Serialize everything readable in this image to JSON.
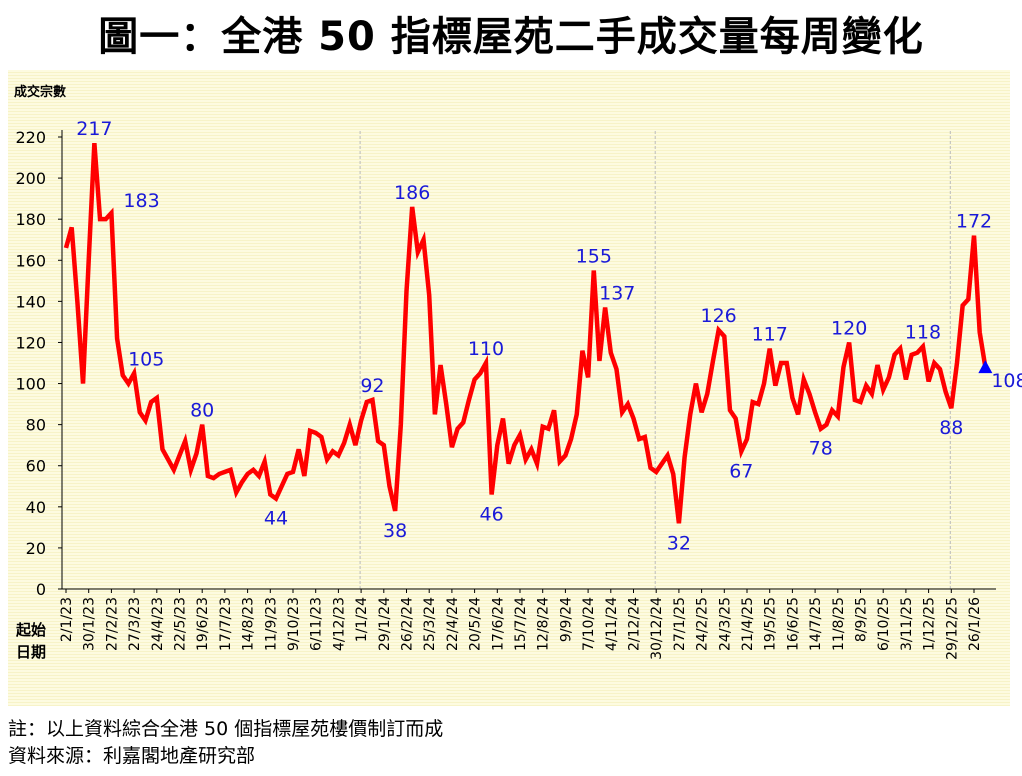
{
  "title": "圖一：全港 50 指標屋苑二手成交量每周變化",
  "footnotes": [
    "註：以上資料綜合全港 50 個指標屋苑樓價制訂而成",
    "資料來源：利嘉閣地產研究部"
  ],
  "colors": {
    "line": "#ff0000",
    "label": "#1a1ad8",
    "marker": "#0000ff"
  },
  "chart_data": {
    "type": "line",
    "title": "圖一：全港 50 指標屋苑二手成交量每周變化",
    "ylabel": "成交宗數",
    "xlabel": "起始日期",
    "xlabel_lines": [
      "起始",
      "日期"
    ],
    "ylim": [
      0,
      220
    ],
    "yticks": [
      0,
      20,
      40,
      60,
      80,
      100,
      120,
      140,
      160,
      180,
      200,
      220
    ],
    "xtick_labels": [
      "2/1/23",
      "30/1/23",
      "27/2/23",
      "27/3/23",
      "24/4/23",
      "22/5/23",
      "19/6/23",
      "17/7/23",
      "14/8/23",
      "11/9/23",
      "9/10/23",
      "6/11/23",
      "4/12/23",
      "1/1/24",
      "29/1/24",
      "26/2/24",
      "25/3/24",
      "22/4/24",
      "20/5/24",
      "17/6/24",
      "15/7/24",
      "12/8/24",
      "9/9/24",
      "7/10/24",
      "4/11/24",
      "2/12/24",
      "30/12/24",
      "27/1/25",
      "24/2/25",
      "24/3/25",
      "21/4/25",
      "19/5/25",
      "16/6/25",
      "14/7/25",
      "11/8/25",
      "8/9/25",
      "6/10/25",
      "3/11/25",
      "1/12/25",
      "29/12/25",
      "26/1/26"
    ],
    "xtick_every_weeks": 4,
    "year_dividers_weeks": [
      52,
      104,
      156
    ],
    "values": [
      166,
      176,
      140,
      100,
      160,
      217,
      180,
      180,
      183,
      122,
      104,
      100,
      105,
      86,
      82,
      91,
      93,
      68,
      63,
      58,
      65,
      72,
      58,
      66,
      80,
      55,
      54,
      56,
      57,
      58,
      47,
      52,
      56,
      58,
      55,
      62,
      46,
      44,
      50,
      56,
      57,
      68,
      55,
      77,
      76,
      74,
      63,
      67,
      65,
      71,
      80,
      70,
      82,
      91,
      92,
      72,
      70,
      50,
      38,
      80,
      145,
      186,
      164,
      170,
      143,
      85,
      109,
      90,
      69,
      78,
      81,
      92,
      102,
      105,
      110,
      46,
      70,
      83,
      61,
      70,
      75,
      63,
      68,
      61,
      79,
      78,
      87,
      62,
      65,
      73,
      85,
      116,
      103,
      155,
      111,
      137,
      115,
      107,
      86,
      90,
      83,
      73,
      74,
      59,
      57,
      61,
      65,
      56,
      32,
      64,
      85,
      100,
      86,
      95,
      111,
      126,
      123,
      87,
      83,
      67,
      73,
      91,
      90,
      100,
      117,
      99,
      110,
      110,
      93,
      85,
      102,
      95,
      86,
      78,
      80,
      87,
      84,
      108,
      120,
      92,
      91,
      99,
      95,
      109,
      97,
      103,
      114,
      117,
      102,
      114,
      115,
      118,
      101,
      110,
      107,
      96,
      88,
      110,
      138,
      141,
      172,
      125,
      108
    ],
    "annotations": [
      {
        "index": 5,
        "text": "217",
        "pos": "above"
      },
      {
        "index": 8,
        "text": "183",
        "pos": "right"
      },
      {
        "index": 12,
        "text": "105",
        "pos": "above-right"
      },
      {
        "index": 24,
        "text": "80",
        "pos": "above"
      },
      {
        "index": 37,
        "text": "44",
        "pos": "below"
      },
      {
        "index": 54,
        "text": "92",
        "pos": "above"
      },
      {
        "index": 58,
        "text": "38",
        "pos": "below"
      },
      {
        "index": 61,
        "text": "186",
        "pos": "above"
      },
      {
        "index": 75,
        "text": "46",
        "pos": "below"
      },
      {
        "index": 74,
        "text": "110",
        "pos": "above"
      },
      {
        "index": 93,
        "text": "155",
        "pos": "above"
      },
      {
        "index": 95,
        "text": "137",
        "pos": "above-right"
      },
      {
        "index": 108,
        "text": "32",
        "pos": "below"
      },
      {
        "index": 115,
        "text": "126",
        "pos": "above"
      },
      {
        "index": 119,
        "text": "67",
        "pos": "below"
      },
      {
        "index": 124,
        "text": "117",
        "pos": "above"
      },
      {
        "index": 133,
        "text": "78",
        "pos": "below"
      },
      {
        "index": 138,
        "text": "120",
        "pos": "above"
      },
      {
        "index": 151,
        "text": "118",
        "pos": "above"
      },
      {
        "index": 156,
        "text": "88",
        "pos": "below"
      },
      {
        "index": 160,
        "text": "172",
        "pos": "above"
      },
      {
        "index": 162,
        "text": "108",
        "pos": "right"
      }
    ],
    "last_point_marker": "triangle"
  }
}
